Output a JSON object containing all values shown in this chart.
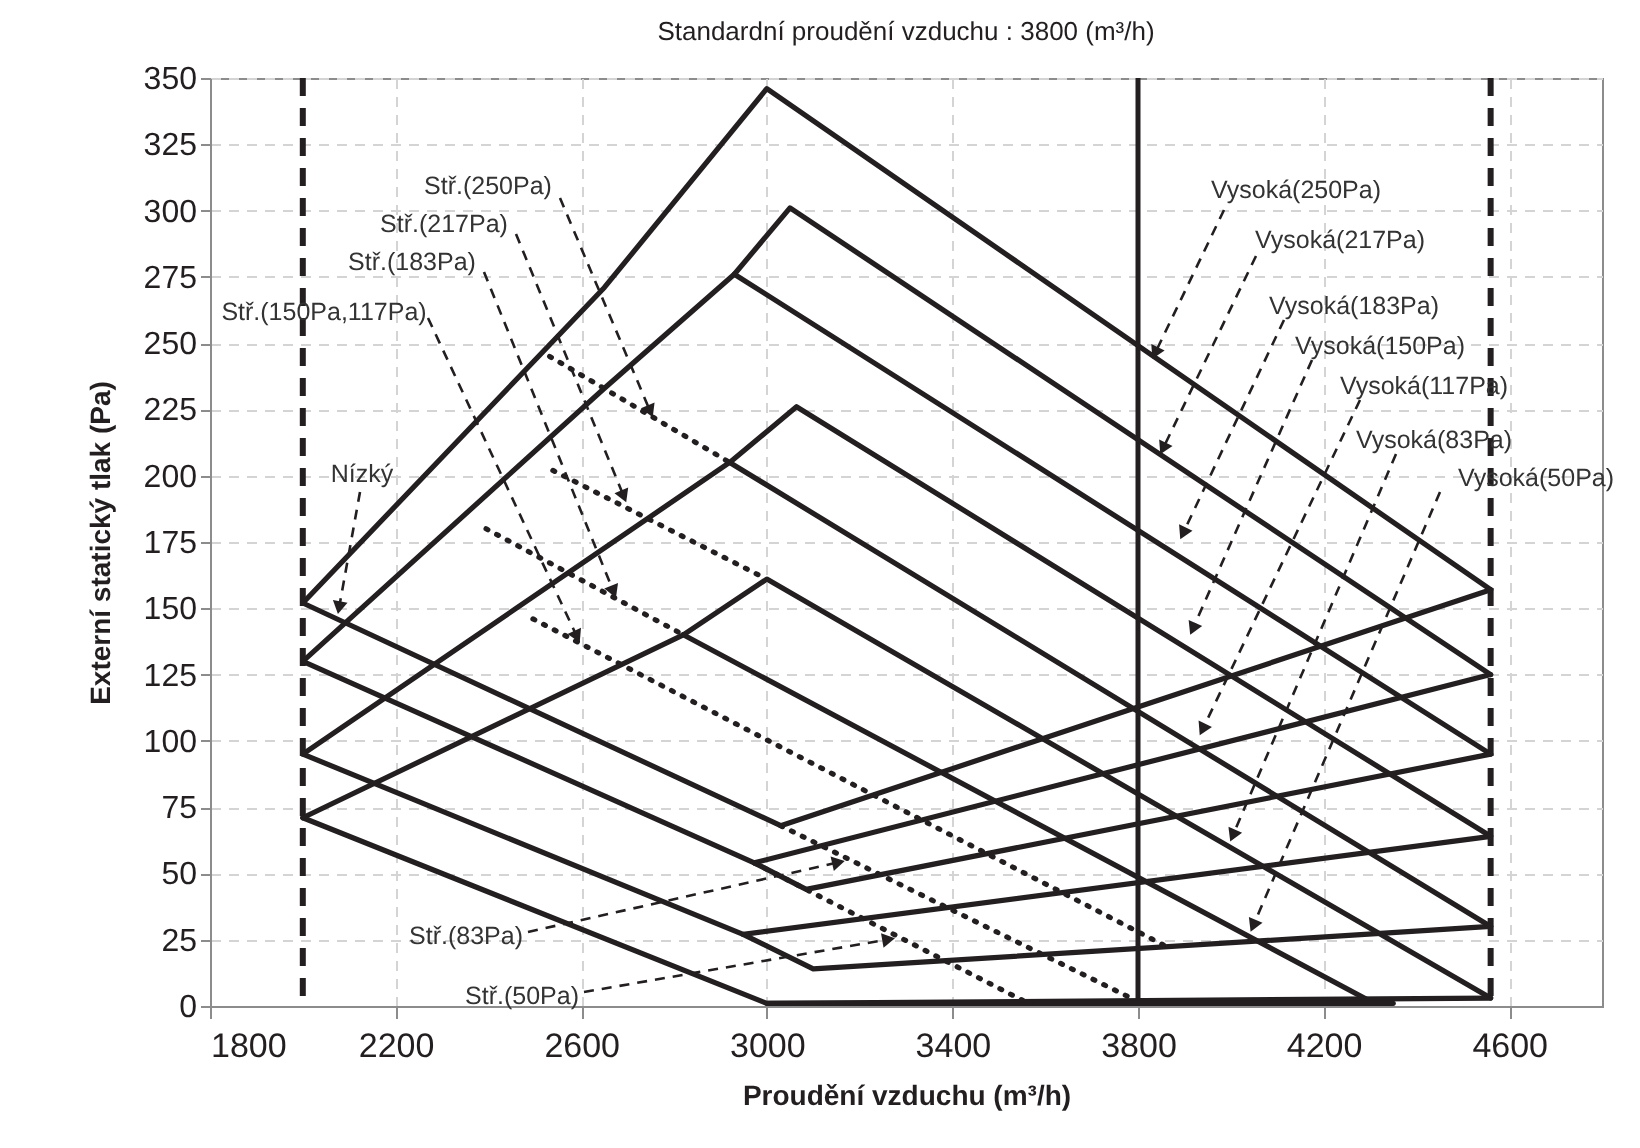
{
  "chart_data": {
    "type": "line",
    "title": "Standardní proudění vzduchu : 3800 (m³/h)",
    "xlabel": "Proudění vzduchu (m³/h)",
    "ylabel": "Externí statický tlak (Pa)",
    "xlim": [
      1800,
      4800
    ],
    "ylim": [
      0,
      350
    ],
    "xticks": [
      1800,
      2200,
      2600,
      3000,
      3400,
      3800,
      4200,
      4600
    ],
    "yticks": [
      0,
      25,
      50,
      75,
      100,
      125,
      150,
      175,
      200,
      225,
      250,
      275,
      300,
      325,
      350
    ],
    "grid": true,
    "series": [
      {
        "color": "#231f20",
        "x": [
          2000,
          2650,
          3000,
          4560
        ],
        "values": [
          152,
          271,
          346,
          157
        ]
      },
      {
        "color": "#231f20",
        "x": [
          2000,
          2650,
          2930,
          3050,
          4560
        ],
        "values": [
          130,
          233,
          276,
          301,
          125
        ]
      },
      {
        "color": "#231f20",
        "x": [
          2930,
          4560
        ],
        "values": [
          276,
          95
        ]
      },
      {
        "color": "#231f20",
        "x": [
          2000,
          2920,
          3064,
          4560
        ],
        "values": [
          95,
          205,
          226,
          64
        ]
      },
      {
        "color": "#231f20",
        "x": [
          2920,
          4560
        ],
        "values": [
          205,
          30
        ]
      },
      {
        "color": "#231f20",
        "x": [
          2000,
          2820,
          3000,
          4560
        ],
        "values": [
          71,
          140,
          161,
          3
        ]
      },
      {
        "color": "#231f20",
        "x": [
          2820,
          4320
        ],
        "values": [
          140,
          0
        ]
      },
      {
        "color": "#231f20",
        "x": [
          2000,
          3030,
          4560
        ],
        "values": [
          152,
          68,
          157
        ]
      },
      {
        "color": "#231f20",
        "x": [
          2000,
          2973,
          3085,
          4560
        ],
        "values": [
          130,
          54,
          44,
          95
        ]
      },
      {
        "color": "#231f20",
        "x": [
          2973,
          4560
        ],
        "values": [
          54,
          125
        ]
      },
      {
        "color": "#231f20",
        "x": [
          2000,
          2949,
          3100,
          4560
        ],
        "values": [
          95,
          27,
          14,
          30
        ]
      },
      {
        "color": "#231f20",
        "x": [
          2949,
          4560
        ],
        "values": [
          27,
          64
        ]
      },
      {
        "color": "#231f20",
        "x": [
          2000,
          3000,
          4560
        ],
        "values": [
          71,
          1,
          3
        ]
      },
      {
        "color": "#231f20",
        "x": [
          3000,
          4350
        ],
        "values": [
          1,
          1
        ]
      },
      {
        "color": "#231f20",
        "line_style": "dotted",
        "x": [
          2532,
          2920
        ],
        "values": [
          245,
          205
        ]
      },
      {
        "color": "#231f20",
        "line_style": "dotted",
        "x": [
          2539,
          3000
        ],
        "values": [
          202,
          161
        ]
      },
      {
        "color": "#231f20",
        "line_style": "dotted",
        "x": [
          2395,
          2820
        ],
        "values": [
          180,
          140
        ]
      },
      {
        "color": "#231f20",
        "line_style": "dotted",
        "x": [
          2496,
          3855
        ],
        "values": [
          146,
          23
        ]
      },
      {
        "color": "#231f20",
        "line_style": "dotted",
        "x": [
          3030,
          3785
        ],
        "values": [
          68,
          3
        ]
      },
      {
        "color": "#231f20",
        "line_style": "dotted",
        "x": [
          2973,
          3575
        ],
        "values": [
          54,
          0
        ]
      }
    ],
    "ref_lines": [
      {
        "axis": "x",
        "value": 2000,
        "color": "#231f20",
        "line_style": "dashed"
      },
      {
        "axis": "x",
        "value": 4560,
        "color": "#231f20",
        "line_style": "dashed"
      },
      {
        "axis": "x",
        "value": 3800,
        "color": "#231f20",
        "line_style": "solid"
      }
    ],
    "annotations": [
      {
        "text": "Stř.(250Pa)",
        "x": 2747,
        "y": 225
      },
      {
        "text": "Stř.(217Pa)",
        "x": 2690,
        "y": 193
      },
      {
        "text": "Stř.(183Pa)",
        "x": 2668,
        "y": 157
      },
      {
        "text": "Stř.(150Pa,117Pa)",
        "x": 2589,
        "y": 140
      },
      {
        "text": "Nízký",
        "x": 2079,
        "y": 151
      },
      {
        "text": "Stř.(83Pa)",
        "x": 3150,
        "y": 54
      },
      {
        "text": "Stř.(50Pa)",
        "x": 3258,
        "y": 25
      },
      {
        "text": "Vysoká(250Pa)",
        "x": 3839,
        "y": 247
      },
      {
        "text": "Vysoká(217Pa)",
        "x": 3856,
        "y": 211
      },
      {
        "text": "Vysoká(183Pa)",
        "x": 3899,
        "y": 179
      },
      {
        "text": "Vysoká(150Pa)",
        "x": 3920,
        "y": 143
      },
      {
        "text": "Vysoká(117Pa)",
        "x": 3941,
        "y": 105
      },
      {
        "text": "Vysoká(83Pa)",
        "x": 4006,
        "y": 65
      },
      {
        "text": "Vysoká(50Pa)",
        "x": 4050,
        "y": 31
      }
    ]
  }
}
